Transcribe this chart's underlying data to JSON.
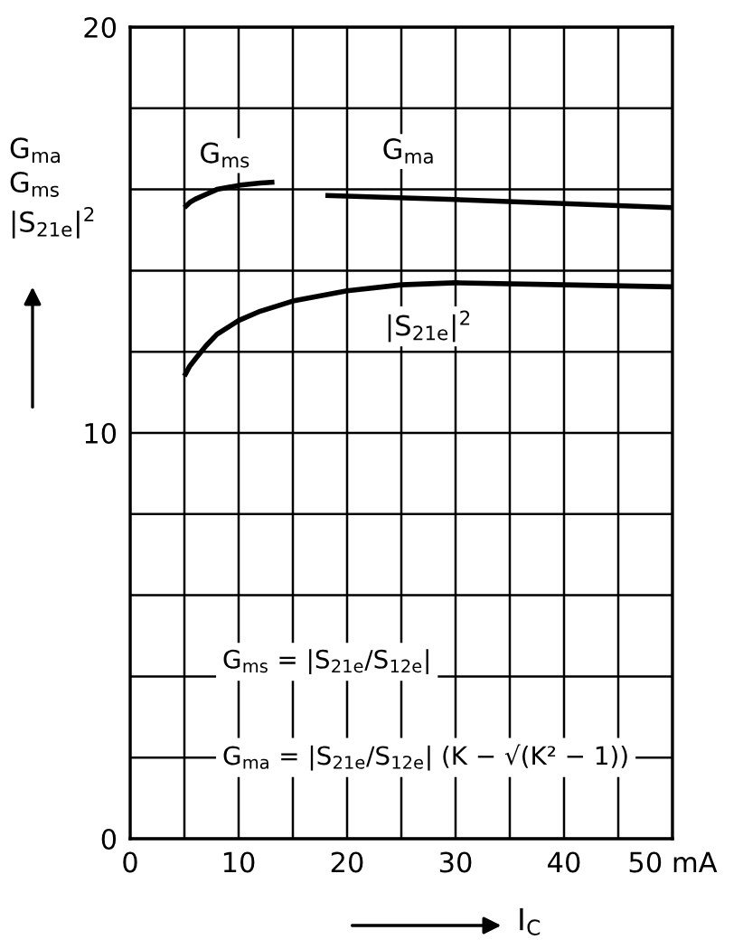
{
  "chart_data": {
    "type": "line",
    "xlabel": "I$_{C}$",
    "ylabel": "G$_{ma}$\nG$_{ms}$\n|S$_{21e}$|$^{2}$",
    "xlim": [
      0,
      50
    ],
    "ylim": [
      0,
      20
    ],
    "xticks": [
      0,
      {
        "value": 5,
        "label": null
      },
      10,
      {
        "value": 15,
        "label": null
      },
      20,
      {
        "value": 25,
        "label": null
      },
      30,
      {
        "value": 35,
        "label": null
      },
      40,
      {
        "value": 45,
        "label": null
      },
      {
        "value": 50,
        "label": "50 mA"
      }
    ],
    "yticks": [
      0,
      {
        "value": 2,
        "label": null
      },
      {
        "value": 4,
        "label": null
      },
      {
        "value": 6,
        "label": null
      },
      {
        "value": 8,
        "label": null
      },
      10,
      {
        "value": 12,
        "label": null
      },
      {
        "value": 14,
        "label": null
      },
      {
        "value": 16,
        "label": null
      },
      {
        "value": 18,
        "label": null
      },
      20
    ],
    "grid": true,
    "line_style": "solid",
    "series": [
      {
        "name": "G$_{ms}$",
        "color": "#000000",
        "x": [
          5,
          5.5,
          6,
          7,
          8,
          10,
          12,
          13.3
        ],
        "values": [
          15.55,
          15.68,
          15.76,
          15.88,
          16.0,
          16.1,
          16.16,
          16.18
        ]
      },
      {
        "name": "G$_{ma}$",
        "color": "#000000",
        "x": [
          18,
          30,
          40,
          50
        ],
        "values": [
          15.85,
          15.75,
          15.65,
          15.55
        ]
      },
      {
        "name": "|S$_{21e}$|$^{2}$",
        "color": "#000000",
        "x": [
          5,
          5.5,
          6,
          7,
          8,
          10,
          12,
          15,
          20,
          25,
          30,
          40,
          50
        ],
        "values": [
          11.4,
          11.65,
          11.82,
          12.15,
          12.43,
          12.77,
          13.0,
          13.25,
          13.5,
          13.65,
          13.7,
          13.65,
          13.6
        ]
      }
    ],
    "annotations": [
      "G$_{ms}$ = |S$_{21e}$/S$_{12e}$|",
      "G$_{ma}$ = |S$_{21e}$/S$_{12e}$| (K − √(K² − 1))"
    ]
  }
}
